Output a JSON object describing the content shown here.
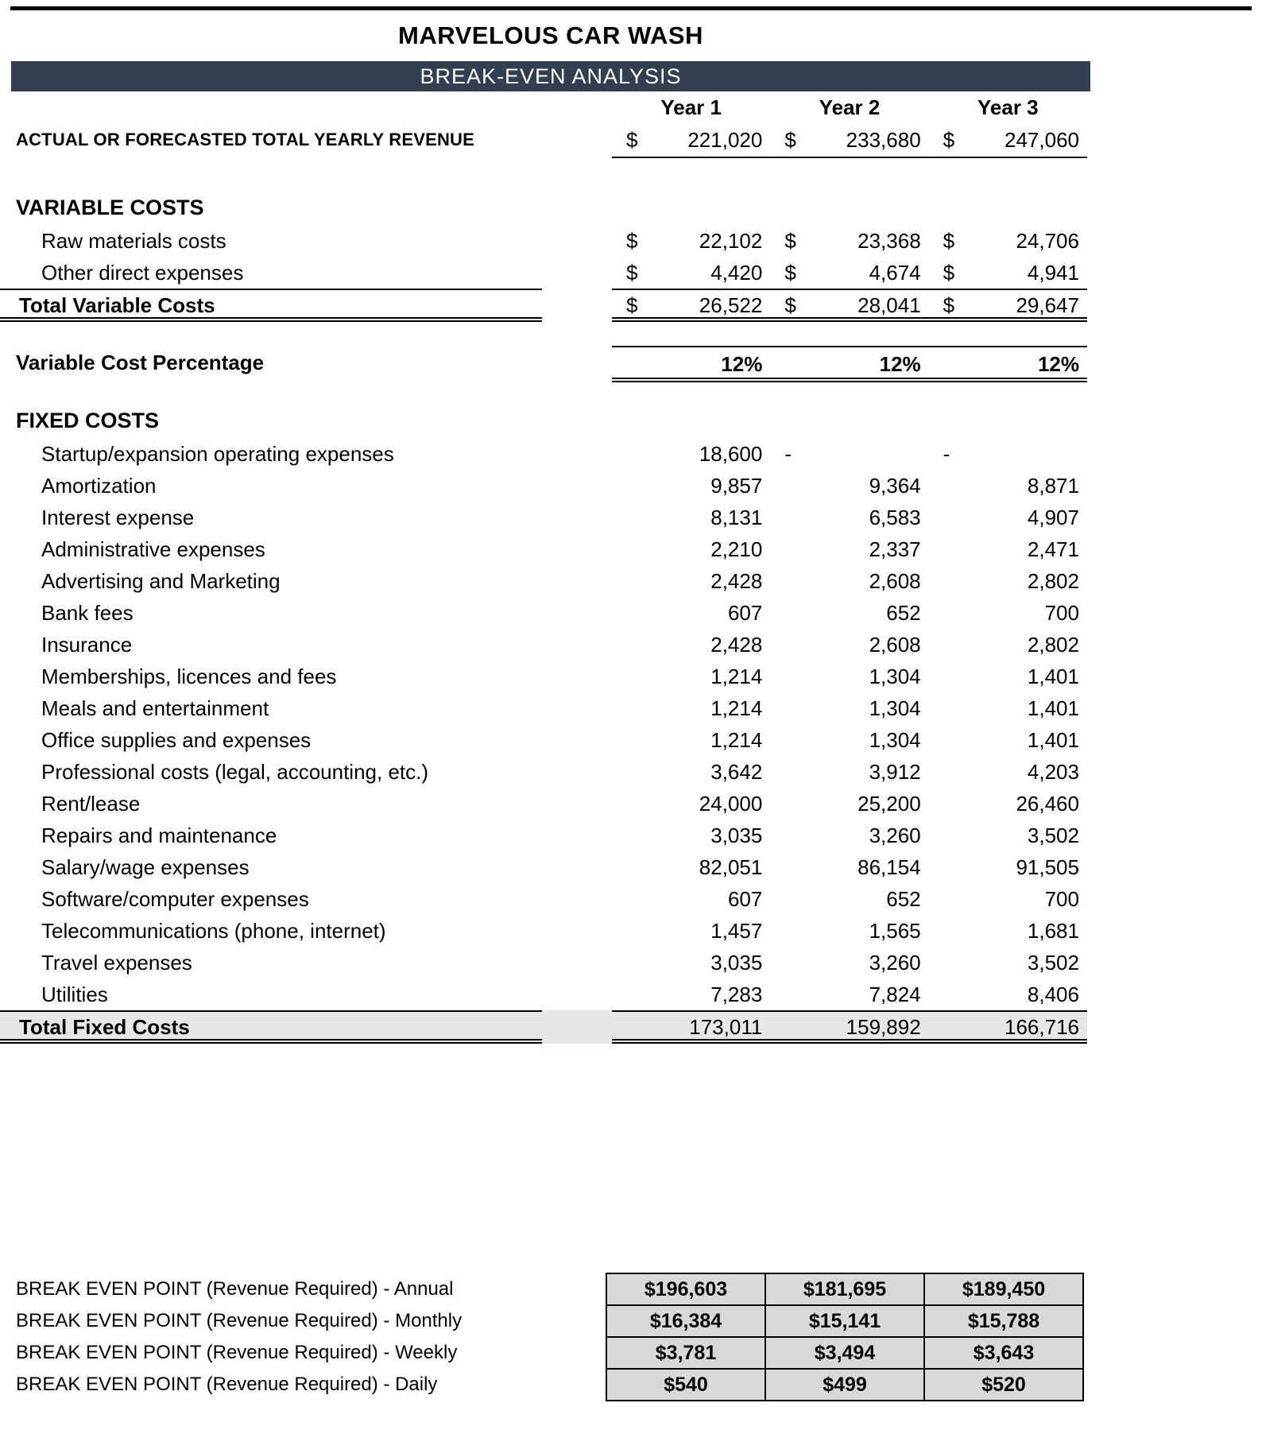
{
  "title": "MARVELOUS CAR WASH",
  "banner": "BREAK-EVEN ANALYSIS",
  "columns": [
    "Year 1",
    "Year 2",
    "Year 3"
  ],
  "revenue": {
    "label": "ACTUAL OR FORECASTED TOTAL YEARLY REVENUE",
    "currency": "$",
    "values": [
      "221,020",
      "233,680",
      "247,060"
    ]
  },
  "variable_costs": {
    "section_label": "VARIABLE COSTS",
    "rows": [
      {
        "label": "Raw materials costs",
        "values": [
          "22,102",
          "23,368",
          "24,706"
        ]
      },
      {
        "label": "Other direct expenses",
        "values": [
          "4,420",
          "4,674",
          "4,941"
        ]
      }
    ],
    "total": {
      "label": "Total Variable Costs",
      "values": [
        "26,522",
        "28,041",
        "29,647"
      ]
    }
  },
  "variable_cost_percentage": {
    "label": "Variable Cost Percentage",
    "values": [
      "12%",
      "12%",
      "12%"
    ]
  },
  "fixed_costs": {
    "section_label": "FIXED COSTS",
    "rows": [
      {
        "label": "Startup/expansion operating expenses",
        "values": [
          "18,600",
          "-",
          "-"
        ]
      },
      {
        "label": "Amortization",
        "values": [
          "9,857",
          "9,364",
          "8,871"
        ]
      },
      {
        "label": "Interest expense",
        "values": [
          "8,131",
          "6,583",
          "4,907"
        ]
      },
      {
        "label": "Administrative expenses",
        "values": [
          "2,210",
          "2,337",
          "2,471"
        ]
      },
      {
        "label": "Advertising and Marketing",
        "values": [
          "2,428",
          "2,608",
          "2,802"
        ]
      },
      {
        "label": "Bank fees",
        "values": [
          "607",
          "652",
          "700"
        ]
      },
      {
        "label": "Insurance",
        "values": [
          "2,428",
          "2,608",
          "2,802"
        ]
      },
      {
        "label": "Memberships, licences and fees",
        "values": [
          "1,214",
          "1,304",
          "1,401"
        ]
      },
      {
        "label": "Meals and entertainment",
        "values": [
          "1,214",
          "1,304",
          "1,401"
        ]
      },
      {
        "label": "Office supplies and expenses",
        "values": [
          "1,214",
          "1,304",
          "1,401"
        ]
      },
      {
        "label": "Professional costs (legal, accounting, etc.)",
        "values": [
          "3,642",
          "3,912",
          "4,203"
        ]
      },
      {
        "label": "Rent/lease",
        "values": [
          "24,000",
          "25,200",
          "26,460"
        ]
      },
      {
        "label": "Repairs and maintenance",
        "values": [
          "3,035",
          "3,260",
          "3,502"
        ]
      },
      {
        "label": "Salary/wage expenses",
        "values": [
          "82,051",
          "86,154",
          "91,505"
        ]
      },
      {
        "label": "Software/computer expenses",
        "values": [
          "607",
          "652",
          "700"
        ]
      },
      {
        "label": "Telecommunications (phone, internet)",
        "values": [
          "1,457",
          "1,565",
          "1,681"
        ]
      },
      {
        "label": "Travel expenses",
        "values": [
          "3,035",
          "3,260",
          "3,502"
        ]
      },
      {
        "label": "Utilities",
        "values": [
          "7,283",
          "7,824",
          "8,406"
        ]
      }
    ],
    "total": {
      "label": "Total Fixed Costs",
      "values": [
        "173,011",
        "159,892",
        "166,716"
      ]
    }
  },
  "break_even": {
    "rows": [
      {
        "label": "BREAK EVEN POINT (Revenue Required) - Annual",
        "values": [
          "$196,603",
          "$181,695",
          "$189,450"
        ]
      },
      {
        "label": "BREAK EVEN POINT (Revenue Required) - Monthly",
        "values": [
          "$16,384",
          "$15,141",
          "$15,788"
        ]
      },
      {
        "label": "BREAK EVEN POINT (Revenue Required) - Weekly",
        "values": [
          "$3,781",
          "$3,494",
          "$3,643"
        ]
      },
      {
        "label": "BREAK EVEN POINT (Revenue Required) - Daily",
        "values": [
          "$540",
          "$499",
          "$520"
        ]
      }
    ]
  },
  "colors": {
    "banner_bg": "#333F50",
    "banner_text": "#FFFFFF",
    "total_fixed_row_bg": "#E7E7E7",
    "break_even_cell_bg": "#D9D9D9",
    "rule_color": "#000000"
  }
}
